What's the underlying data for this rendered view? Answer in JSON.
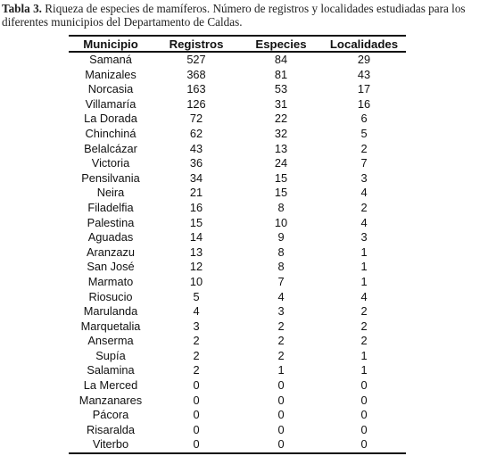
{
  "caption": {
    "label": "Tabla 3.",
    "text": "Riqueza de especies de mamíferos. Número de registros y localidades estudiadas para los diferentes municipios del Departamento de Caldas."
  },
  "table": {
    "header": [
      "Municipio",
      "Registros",
      "Especies",
      "Localidades"
    ],
    "rows": [
      [
        "Samaná",
        527,
        84,
        29
      ],
      [
        "Manizales",
        368,
        81,
        43
      ],
      [
        "Norcasia",
        163,
        53,
        17
      ],
      [
        "Villamaría",
        126,
        31,
        16
      ],
      [
        "La Dorada",
        72,
        22,
        6
      ],
      [
        "Chinchiná",
        62,
        32,
        5
      ],
      [
        "Belalcázar",
        43,
        13,
        2
      ],
      [
        "Victoria",
        36,
        24,
        7
      ],
      [
        "Pensilvania",
        34,
        15,
        3
      ],
      [
        "Neira",
        21,
        15,
        4
      ],
      [
        "Filadelfia",
        16,
        8,
        2
      ],
      [
        "Palestina",
        15,
        10,
        4
      ],
      [
        "Aguadas",
        14,
        9,
        3
      ],
      [
        "Aranzazu",
        13,
        8,
        1
      ],
      [
        "San José",
        12,
        8,
        1
      ],
      [
        "Marmato",
        10,
        7,
        1
      ],
      [
        "Riosucio",
        5,
        4,
        4
      ],
      [
        "Marulanda",
        4,
        3,
        2
      ],
      [
        "Marquetalia",
        3,
        2,
        2
      ],
      [
        "Anserma",
        2,
        2,
        2
      ],
      [
        "Supía",
        2,
        2,
        1
      ],
      [
        "Salamina",
        2,
        1,
        1
      ],
      [
        "La Merced",
        0,
        0,
        0
      ],
      [
        "Manzanares",
        0,
        0,
        0
      ],
      [
        "Pácora",
        0,
        0,
        0
      ],
      [
        "Risaralda",
        0,
        0,
        0
      ],
      [
        "Viterbo",
        0,
        0,
        0
      ]
    ]
  }
}
